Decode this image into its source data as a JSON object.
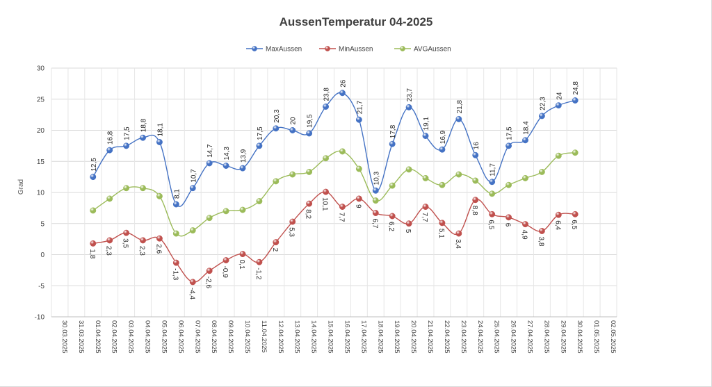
{
  "chart_data": {
    "type": "line",
    "title": "AussenTemperatur 04-2025",
    "ylabel": "Grad",
    "xlabel": "",
    "ylim": [
      -10,
      30
    ],
    "yticks": [
      -10,
      -5,
      0,
      5,
      10,
      15,
      20,
      25,
      30
    ],
    "grid": true,
    "legend_position": "top",
    "smooth": true,
    "x": [
      "30.03.2025",
      "31.03.2025",
      "01.04.2025",
      "02.04.2025",
      "03.04.2025",
      "04.04.2025",
      "05.04.2025",
      "06.04.2025",
      "07.04.2025",
      "08.04.2025",
      "09.04.2025",
      "10.04.2025",
      "11.04.2025",
      "12.04.2025",
      "13.04.2025",
      "14.04.2025",
      "15.04.2025",
      "16.04.2025",
      "17.04.2025",
      "18.04.2025",
      "19.04.2025",
      "20.04.2025",
      "21.04.2025",
      "22.04.2025",
      "23.04.2025",
      "24.04.2025",
      "25.04.2025",
      "26.04.2025",
      "27.04.2025",
      "28.04.2025",
      "29.04.2025",
      "30.04.2025",
      "01.05.2025",
      "02.05.2025"
    ],
    "series": [
      {
        "name": "MaxAussen",
        "color": "#4472c4",
        "x": [
          "01.04.2025",
          "02.04.2025",
          "03.04.2025",
          "04.04.2025",
          "05.04.2025",
          "06.04.2025",
          "07.04.2025",
          "08.04.2025",
          "09.04.2025",
          "10.04.2025",
          "11.04.2025",
          "12.04.2025",
          "13.04.2025",
          "14.04.2025",
          "15.04.2025",
          "16.04.2025",
          "17.04.2025",
          "18.04.2025",
          "19.04.2025",
          "20.04.2025",
          "21.04.2025",
          "22.04.2025",
          "23.04.2025",
          "24.04.2025",
          "25.04.2025",
          "26.04.2025",
          "27.04.2025",
          "28.04.2025",
          "29.04.2025",
          "30.04.2025"
        ],
        "values": [
          12.5,
          16.8,
          17.5,
          18.8,
          18.1,
          8.1,
          10.7,
          14.7,
          14.3,
          13.9,
          17.5,
          20.3,
          20,
          19.5,
          23.8,
          26,
          21.7,
          10.3,
          17.8,
          23.7,
          19.1,
          16.9,
          21.8,
          16,
          11.7,
          17.5,
          18.4,
          22.3,
          24,
          24.8
        ],
        "labels": [
          "12,5",
          "16,8",
          "17,5",
          "18,8",
          "18,1",
          "8,1",
          "10,7",
          "14,7",
          "14,3",
          "13,9",
          "17,5",
          "20,3",
          "20",
          "19,5",
          "23,8",
          "26",
          "21,7",
          "10,3",
          "17,8",
          "23,7",
          "19,1",
          "16,9",
          "21,8",
          "16",
          "11,7",
          "17,5",
          "18,4",
          "22,3",
          "24",
          "24,8"
        ],
        "label_position": "above"
      },
      {
        "name": "MinAussen",
        "color": "#c0504d",
        "x": [
          "01.04.2025",
          "02.04.2025",
          "03.04.2025",
          "04.04.2025",
          "05.04.2025",
          "06.04.2025",
          "07.04.2025",
          "08.04.2025",
          "09.04.2025",
          "10.04.2025",
          "11.04.2025",
          "12.04.2025",
          "13.04.2025",
          "14.04.2025",
          "15.04.2025",
          "16.04.2025",
          "17.04.2025",
          "18.04.2025",
          "19.04.2025",
          "20.04.2025",
          "21.04.2025",
          "22.04.2025",
          "23.04.2025",
          "24.04.2025",
          "25.04.2025",
          "26.04.2025",
          "27.04.2025",
          "28.04.2025",
          "29.04.2025",
          "30.04.2025"
        ],
        "values": [
          1.8,
          2.3,
          3.5,
          2.3,
          2.6,
          -1.3,
          -4.4,
          -2.6,
          -0.9,
          0.1,
          -1.2,
          2,
          5.3,
          8.2,
          10.1,
          7.7,
          9,
          6.7,
          6.2,
          5,
          7.7,
          5.1,
          3.4,
          8.8,
          6.5,
          6,
          4.9,
          3.8,
          6.4,
          6.5
        ],
        "labels": [
          "1,8",
          "2,3",
          "3,5",
          "2,3",
          "2,6",
          "-1,3",
          "-4,4",
          "-2,6",
          "-0,9",
          "0,1",
          "-1,2",
          "2",
          "5,3",
          "8,2",
          "10,1",
          "7,7",
          "9",
          "6,7",
          "6,2",
          "5",
          "7,7",
          "5,1",
          "3,4",
          "8,8",
          "6,5",
          "6",
          "4,9",
          "3,8",
          "6,4",
          "6,5"
        ],
        "label_position": "below"
      },
      {
        "name": "AVGAussen",
        "color": "#9bbb59",
        "x": [
          "01.04.2025",
          "02.04.2025",
          "03.04.2025",
          "04.04.2025",
          "05.04.2025",
          "06.04.2025",
          "07.04.2025",
          "08.04.2025",
          "09.04.2025",
          "10.04.2025",
          "11.04.2025",
          "12.04.2025",
          "13.04.2025",
          "14.04.2025",
          "15.04.2025",
          "16.04.2025",
          "17.04.2025",
          "18.04.2025",
          "19.04.2025",
          "20.04.2025",
          "21.04.2025",
          "22.04.2025",
          "23.04.2025",
          "24.04.2025",
          "25.04.2025",
          "26.04.2025",
          "27.04.2025",
          "28.04.2025",
          "29.04.2025",
          "30.04.2025"
        ],
        "values": [
          7.1,
          9.0,
          10.7,
          10.7,
          9.4,
          3.4,
          3.9,
          5.9,
          7.0,
          7.2,
          8.6,
          11.8,
          12.9,
          13.3,
          15.5,
          16.6,
          13.8,
          8.7,
          11.1,
          13.7,
          12.3,
          11.2,
          12.9,
          11.9,
          9.8,
          11.2,
          12.3,
          13.3,
          15.9,
          16.4
        ],
        "labels": [],
        "label_position": "none"
      }
    ]
  }
}
